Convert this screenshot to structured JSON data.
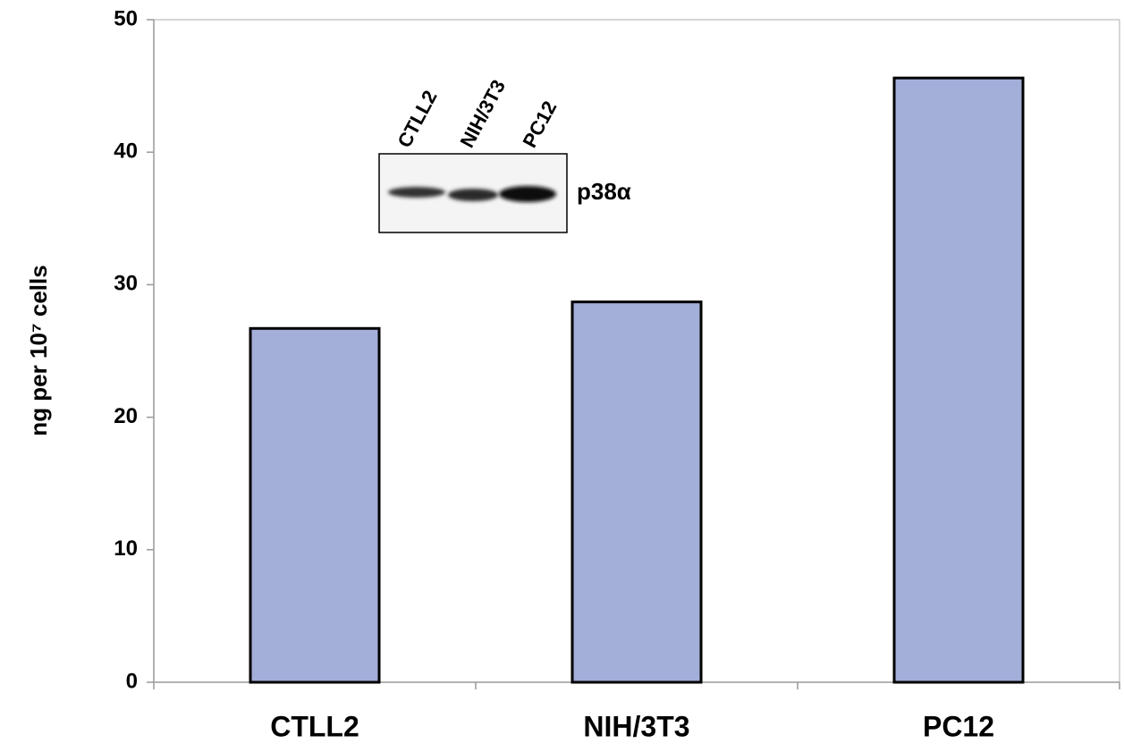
{
  "chart_data": {
    "type": "bar",
    "y_label": "ng per 10⁷ cells",
    "categories": [
      "CTLL2",
      "NIH/3T3",
      "PC12"
    ],
    "values": [
      26.7,
      28.7,
      45.6
    ],
    "color": "#a3aed9",
    "ylim": [
      0,
      50
    ],
    "yticks": [
      0,
      10,
      20,
      30,
      40,
      50
    ],
    "inset": {
      "lanes": [
        "CTLL2",
        "NIH/3T3",
        "PC12"
      ],
      "band_label": "p38α"
    }
  }
}
